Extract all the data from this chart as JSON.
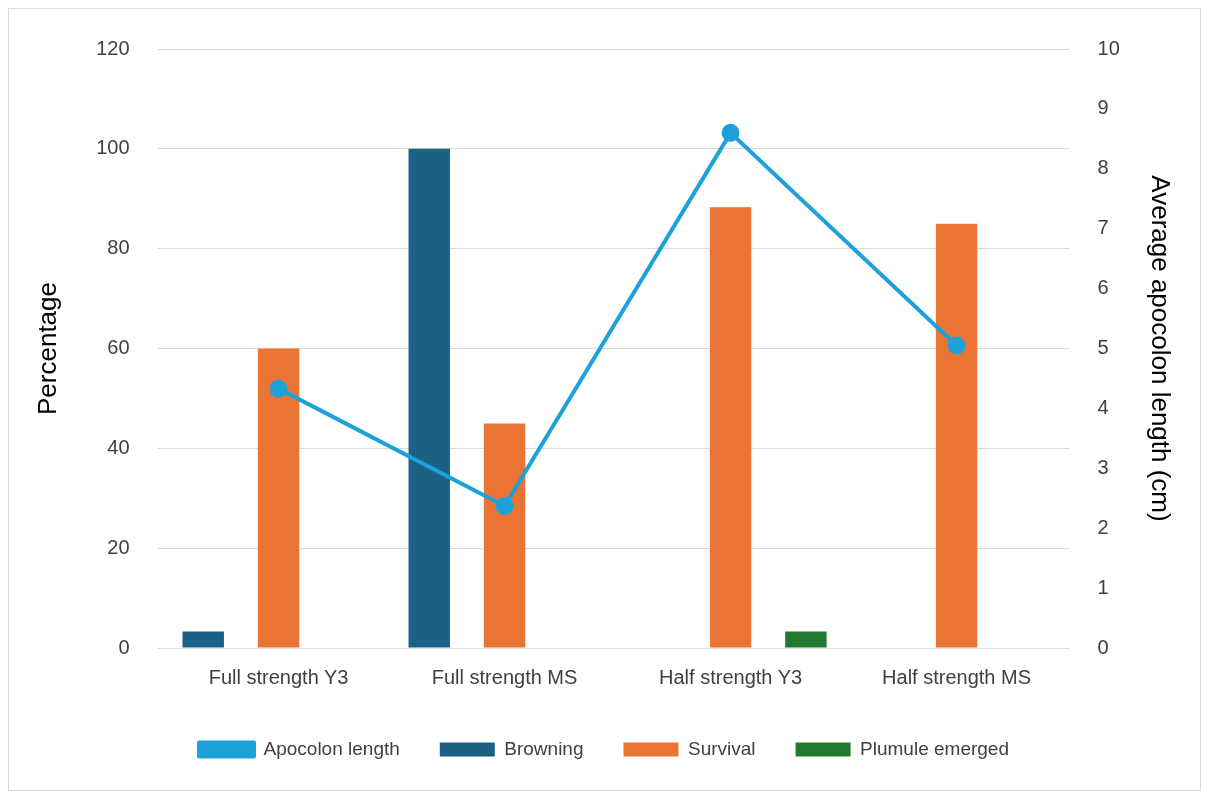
{
  "chart_data": {
    "type": "bar",
    "ylabel": "Percentage",
    "y2label": "Average apocolon length (cm)",
    "categories": [
      "Full strength Y3",
      "Full strength MS",
      "Half strength Y3",
      "Half strength MS"
    ],
    "series": [
      {
        "name": "Browning",
        "color": "#1a6185",
        "values": [
          3.3,
          100,
          0,
          0
        ]
      },
      {
        "name": "Survival",
        "color": "#ea7434",
        "values": [
          60,
          45,
          88.3,
          85
        ]
      },
      {
        "name": "Plumule emerged",
        "color": "#217a2f",
        "values": [
          0,
          0,
          3.3,
          0
        ]
      },
      {
        "name": "Apocolon length",
        "type": "line",
        "axis": "y2",
        "color": "#1ea0d8",
        "values": [
          4.33,
          2.37,
          8.6,
          5.05
        ]
      }
    ],
    "ylim": [
      0,
      120
    ],
    "yticks": [
      0,
      20,
      40,
      60,
      80,
      100,
      120
    ],
    "y2lim": [
      0,
      10
    ],
    "y2ticks": [
      0,
      1,
      2,
      3,
      4,
      5,
      6,
      7,
      8,
      9,
      10
    ],
    "grid": "y",
    "legend": "bottom",
    "marker": "circle",
    "line_style": "solid"
  }
}
